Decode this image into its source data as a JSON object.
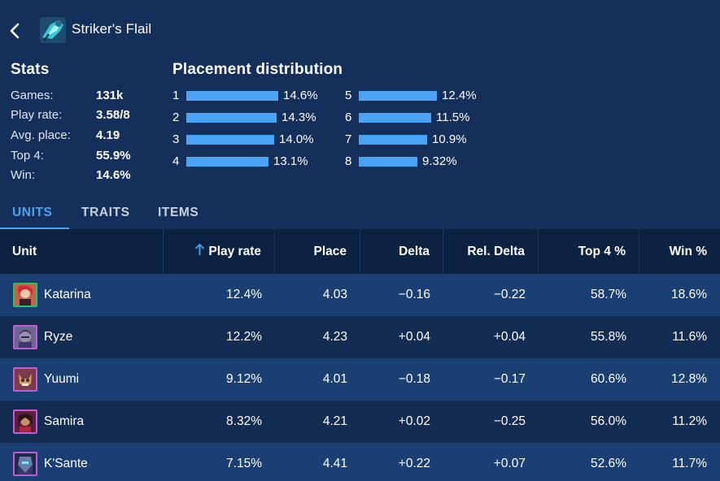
{
  "header": {
    "item_name": "Striker's Flail",
    "item_icon": "striker-flail-icon",
    "back_icon": "chevron-left-icon"
  },
  "stats": {
    "title": "Stats",
    "rows": [
      {
        "label": "Games:",
        "value": "131k"
      },
      {
        "label": "Play rate:",
        "value": "3.58/8"
      },
      {
        "label": "Avg. place:",
        "value": "4.19"
      },
      {
        "label": "Top 4:",
        "value": "55.9%"
      },
      {
        "label": "Win:",
        "value": "14.6%"
      }
    ]
  },
  "placement": {
    "title": "Placement distribution",
    "accent": "#4aa3f5",
    "ranks": [
      {
        "rank": "1",
        "value": "14.6%",
        "pct": 14.6
      },
      {
        "rank": "2",
        "value": "14.3%",
        "pct": 14.3
      },
      {
        "rank": "3",
        "value": "14.0%",
        "pct": 14.0
      },
      {
        "rank": "4",
        "value": "13.1%",
        "pct": 13.1
      },
      {
        "rank": "5",
        "value": "12.4%",
        "pct": 12.4
      },
      {
        "rank": "6",
        "value": "11.5%",
        "pct": 11.5
      },
      {
        "rank": "7",
        "value": "10.9%",
        "pct": 10.9
      },
      {
        "rank": "8",
        "value": "9.32%",
        "pct": 9.32
      }
    ]
  },
  "tabs": [
    {
      "label": "UNITS",
      "active": true
    },
    {
      "label": "TRAITS",
      "active": false
    },
    {
      "label": "ITEMS",
      "active": false
    }
  ],
  "table": {
    "sort_icon": "arrow-up-icon",
    "columns": [
      "Unit",
      "Play rate",
      "Place",
      "Delta",
      "Rel. Delta",
      "Top 4 %",
      "Win %"
    ],
    "rows": [
      {
        "unit": "Katarina",
        "icon": "katarina-portrait",
        "border": "#2fbf6a",
        "play_rate": "12.4%",
        "place": "4.03",
        "delta": "−0.16",
        "rel_delta": "−0.22",
        "top4": "58.7%",
        "win": "18.6%"
      },
      {
        "unit": "Ryze",
        "icon": "ryze-portrait",
        "border": "#c05cd6",
        "play_rate": "12.2%",
        "place": "4.23",
        "delta": "+0.04",
        "rel_delta": "+0.04",
        "top4": "55.8%",
        "win": "11.6%"
      },
      {
        "unit": "Yuumi",
        "icon": "yuumi-portrait",
        "border": "#c05cd6",
        "play_rate": "9.12%",
        "place": "4.01",
        "delta": "−0.18",
        "rel_delta": "−0.17",
        "top4": "60.6%",
        "win": "12.8%"
      },
      {
        "unit": "Samira",
        "icon": "samira-portrait",
        "border": "#c05cd6",
        "play_rate": "8.32%",
        "place": "4.21",
        "delta": "+0.02",
        "rel_delta": "−0.25",
        "top4": "56.0%",
        "win": "11.2%"
      },
      {
        "unit": "K'Sante",
        "icon": "ksante-portrait",
        "border": "#c05cd6",
        "play_rate": "7.15%",
        "place": "4.41",
        "delta": "+0.22",
        "rel_delta": "+0.07",
        "top4": "52.6%",
        "win": "11.7%"
      }
    ]
  }
}
